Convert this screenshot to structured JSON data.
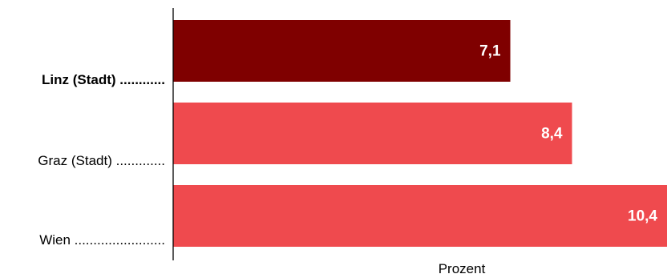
{
  "chart_data": {
    "type": "bar",
    "orientation": "horizontal",
    "categories": [
      "Linz (Stadt) ............",
      "Graz (Stadt) .............",
      "Wien ........................"
    ],
    "highlight_category_index": 0,
    "values": [
      7.1,
      8.4,
      10.4
    ],
    "value_labels": [
      "7,1",
      "8,4",
      "10,4"
    ],
    "xlabel": "Prozent",
    "xlim": [
      0,
      10.4
    ],
    "grid": false,
    "legend": "none",
    "colors": {
      "highlight": "#7f0000",
      "default": "#ef4a4e",
      "axis": "#000000",
      "value_text": "#ffffff"
    }
  }
}
